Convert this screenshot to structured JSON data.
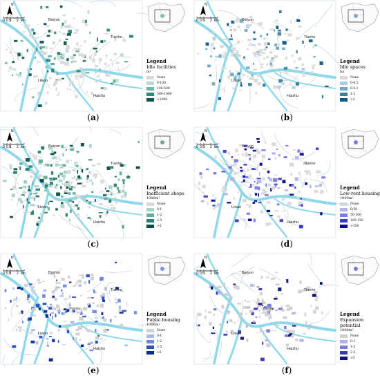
{
  "panels": [
    {
      "id": "a",
      "caption": "a",
      "title": "Legend",
      "variable": "Idle facilities",
      "unit": "m²",
      "classes": [
        "None",
        "0-100",
        "100-500",
        "500-1000",
        ">1000"
      ],
      "colors": [
        "#d9d9d9",
        "#b8ddd6",
        "#6cb8a8",
        "#2f8a78",
        "#0b5a4b"
      ],
      "patch_color": "#3d9a88",
      "density": 0.55
    },
    {
      "id": "b",
      "caption": "b",
      "title": "Legend",
      "variable": "Idle spaces",
      "unit": "ha",
      "classes": [
        "None",
        "0-0.5",
        "0.5-1",
        "1-2",
        ">2"
      ],
      "colors": [
        "#d9d9d9",
        "#a8cfdf",
        "#6ea9c3",
        "#3b7fa3",
        "#0d5a82"
      ],
      "patch_color": "#2f7aa0",
      "density": 0.45
    },
    {
      "id": "c",
      "caption": "c",
      "title": "Legend",
      "variable": "Inefficient shops",
      "unit": "1000m²",
      "classes": [
        "None",
        "0-1",
        "1-2",
        "2-5",
        ">5"
      ],
      "colors": [
        "#d9d9d9",
        "#a6d3c8",
        "#5fae9c",
        "#2b7f6f",
        "#0a4d42"
      ],
      "patch_color": "#1f6e60",
      "density": 0.8
    },
    {
      "id": "d",
      "caption": "d",
      "title": "Legend",
      "variable": "Low-rent housing",
      "unit": "1000m²",
      "classes": [
        "None",
        "0-50",
        "50-100",
        "100-150",
        ">150"
      ],
      "colors": [
        "#d9d9d9",
        "#b3b3ee",
        "#7b7be0",
        "#3b3bc9",
        "#0a0a8c"
      ],
      "patch_color": "#2a2ab8",
      "density": 0.55
    },
    {
      "id": "e",
      "caption": "e",
      "title": "Legend",
      "variable": "Public housing",
      "unit": "1000m²",
      "classes": [
        "None",
        "0-1",
        "1-2",
        "2-5",
        ">5"
      ],
      "colors": [
        "#d0d0d0",
        "#a9b7ec",
        "#6c86dc",
        "#2c4fc2",
        "#0c2a8e"
      ],
      "patch_color": "#3456c8",
      "density": 0.55
    },
    {
      "id": "f",
      "caption": "f",
      "title": "Legend",
      "variable": "Expansion potential",
      "unit": "1000m²",
      "classes": [
        "None",
        "0-1",
        "1-2",
        "2-5",
        ">5"
      ],
      "colors": [
        "#d0d0d0",
        "#b0b0e8",
        "#7a7ad8",
        "#3a3ab8",
        "#10107a"
      ],
      "patch_color": "#2c2ca6",
      "density": 0.3
    }
  ],
  "places": {
    "baiyun": "Baiyun",
    "tianhe": "Tianhe",
    "liwan": "Liwan",
    "haizhu": "Haizhu",
    "yuexiu": "Yuexiu"
  },
  "north_label": "N",
  "scale_labels": [
    "0",
    "0.5",
    "1",
    "",
    "2",
    "km"
  ],
  "river_color": "#8fd8ea",
  "road_color": "#b8ccd8"
}
